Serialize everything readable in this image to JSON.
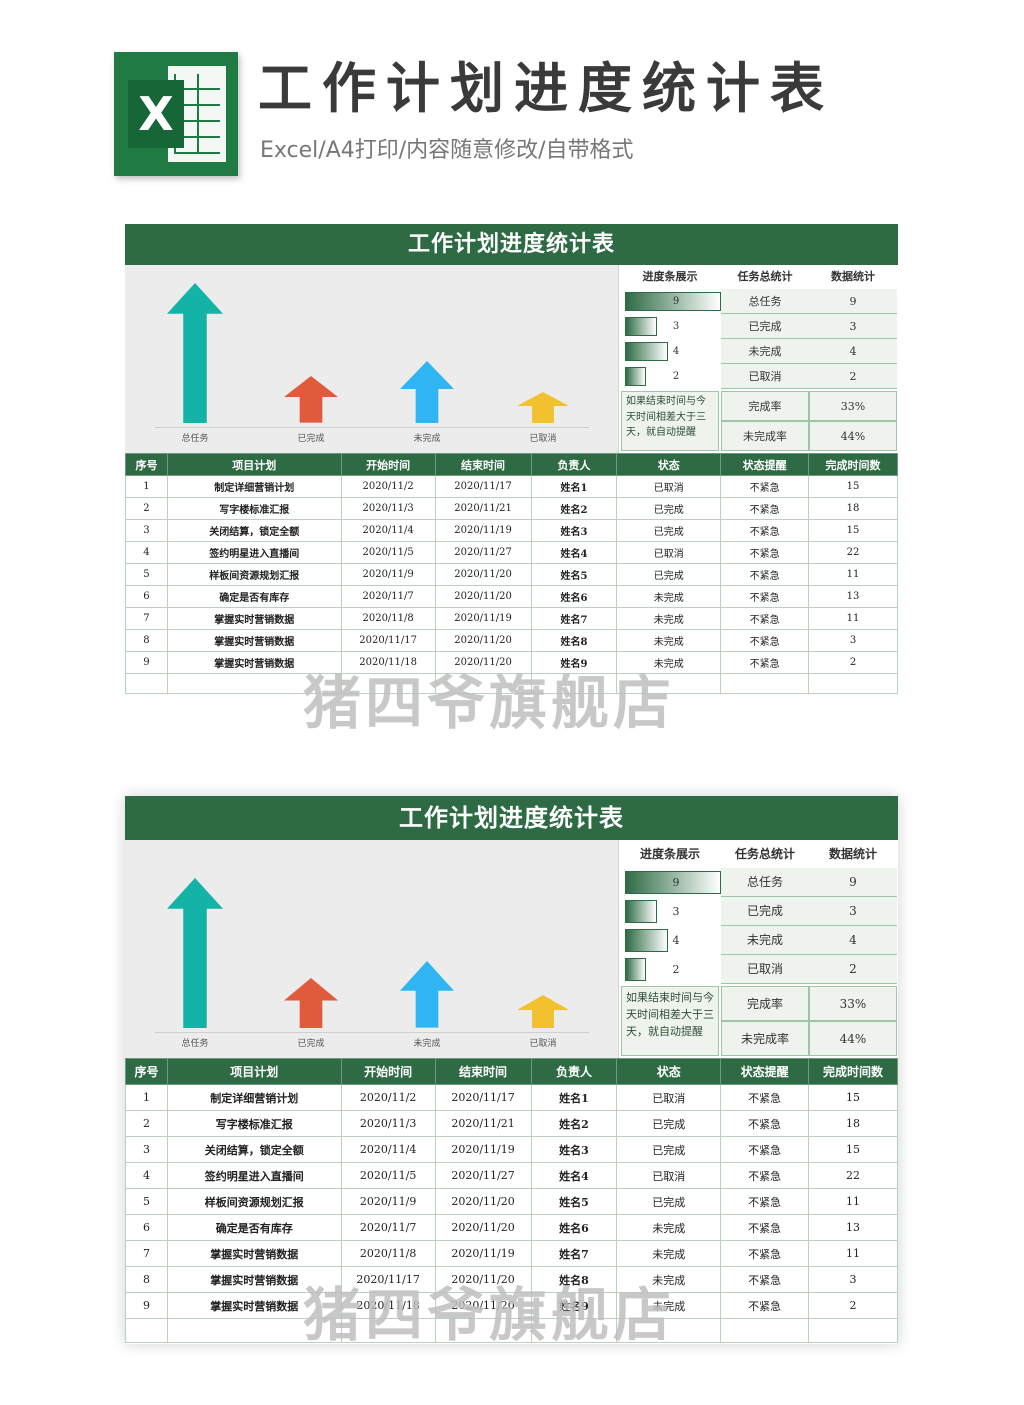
{
  "header": {
    "logo_letter": "X",
    "title": "工作计划进度统计表",
    "subtitle": "Excel/A4打印/内容随意修改/自带格式"
  },
  "sheet": {
    "title": "工作计划进度统计表",
    "chart_labels": [
      "总任务",
      "已完成",
      "未完成",
      "已取消"
    ],
    "chart_values": [
      9,
      3,
      4,
      2
    ],
    "chart_colors": [
      "#14b3a8",
      "#e05a3c",
      "#2fb6f2",
      "#f2c12e"
    ],
    "stats_headers": [
      "进度条展示",
      "任务总统计",
      "数据统计"
    ],
    "stats_rows": [
      {
        "bar": 9,
        "label": "总任务",
        "value": "9"
      },
      {
        "bar": 3,
        "label": "已完成",
        "value": "3"
      },
      {
        "bar": 4,
        "label": "未完成",
        "value": "4"
      },
      {
        "bar": 2,
        "label": "已取消",
        "value": "2"
      }
    ],
    "note": "如果结束时间与今天时间相差大于三天，就自动提醒",
    "rate_rows": [
      {
        "label": "完成率",
        "value": "33%"
      },
      {
        "label": "未完成率",
        "value": "44%"
      }
    ],
    "table_headers": [
      "序号",
      "项目计划",
      "开始时间",
      "结束时间",
      "负责人",
      "状态",
      "状态提醒",
      "完成时间数"
    ],
    "table_rows": [
      [
        "1",
        "制定详细营销计划",
        "2020/11/2",
        "2020/11/17",
        "姓名1",
        "已取消",
        "不紧急",
        "15"
      ],
      [
        "2",
        "写字楼标准汇报",
        "2020/11/3",
        "2020/11/21",
        "姓名2",
        "已完成",
        "不紧急",
        "18"
      ],
      [
        "3",
        "关闭结算，锁定全额",
        "2020/11/4",
        "2020/11/19",
        "姓名3",
        "已完成",
        "不紧急",
        "15"
      ],
      [
        "4",
        "签约明星进入直播间",
        "2020/11/5",
        "2020/11/27",
        "姓名4",
        "已取消",
        "不紧急",
        "22"
      ],
      [
        "5",
        "样板间资源规划汇报",
        "2020/11/9",
        "2020/11/20",
        "姓名5",
        "已完成",
        "不紧急",
        "11"
      ],
      [
        "6",
        "确定是否有库存",
        "2020/11/7",
        "2020/11/20",
        "姓名6",
        "未完成",
        "不紧急",
        "13"
      ],
      [
        "7",
        "掌握实时营销数据",
        "2020/11/8",
        "2020/11/19",
        "姓名7",
        "未完成",
        "不紧急",
        "11"
      ],
      [
        "8",
        "掌握实时营销数据",
        "2020/11/17",
        "2020/11/20",
        "姓名8",
        "未完成",
        "不紧急",
        "3"
      ],
      [
        "9",
        "掌握实时营销数据",
        "2020/11/18",
        "2020/11/20",
        "姓名9",
        "未完成",
        "不紧急",
        "2"
      ]
    ]
  },
  "watermark": "猪四爷旗舰店"
}
